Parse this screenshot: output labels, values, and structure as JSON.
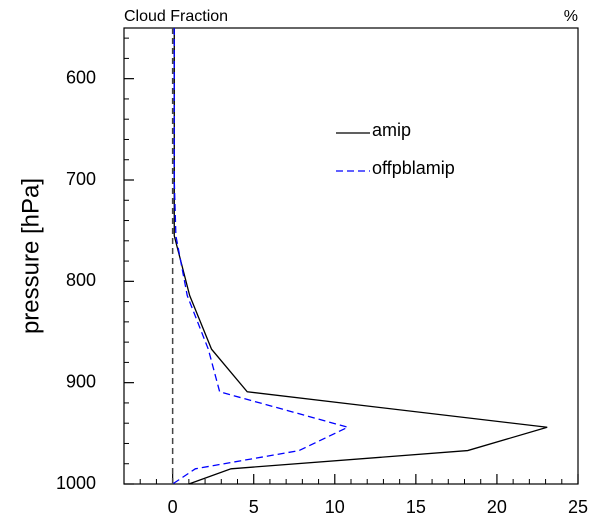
{
  "chart_data": {
    "type": "profile",
    "left_title": "Cloud Fraction",
    "right_title": "%",
    "ylabel": "pressure [hPa]",
    "pressure": [
      550,
      600,
      650,
      700,
      755,
      814,
      867,
      909,
      944,
      967,
      985,
      1000
    ],
    "series": [
      {
        "name": "amip",
        "color": "#000000",
        "dash": false,
        "values": [
          0.1,
          0.1,
          0.1,
          0.1,
          0.1,
          1.05,
          2.4,
          4.6,
          23.1,
          18.2,
          3.6,
          1.0
        ]
      },
      {
        "name": "offpblamip",
        "color": "#0000ff",
        "dash": true,
        "values": [
          0.1,
          0.1,
          0.1,
          0.1,
          0.2,
          0.9,
          2.2,
          2.9,
          10.8,
          7.8,
          1.4,
          0
        ]
      }
    ],
    "xlim": [
      -3,
      25
    ],
    "xticks": [
      0,
      5,
      10,
      15,
      20,
      25
    ],
    "ylim": [
      1000,
      550
    ],
    "yticks": [
      600,
      700,
      800,
      900,
      1000
    ],
    "reference_x": 0
  }
}
